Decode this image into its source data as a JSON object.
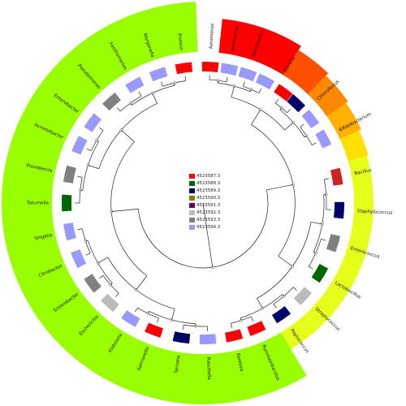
{
  "taxa": [
    "Aeromonas",
    "Aerococcus",
    "Paenibacillus",
    "Borrelia",
    "Chloroflexus",
    "Bifidobacterium",
    "Bacillus",
    "Staphylococcus",
    "Enterococcus",
    "Lactobacillus",
    "Streptococcus",
    "Peptococcus",
    "Rummeliibacillus",
    "Pantoea",
    "Raoultella",
    "Serratia",
    "Salmonella",
    "Klebsiella",
    "Escherichia",
    "Enterobacter",
    "Citrobacter",
    "Shigella",
    "Tatumella",
    "Providencia",
    "Acinetobacter",
    "Enterobacter",
    "Pseudomonas",
    "Xanthomonas",
    "Morganella",
    "Proteus"
  ],
  "labels": [
    {
      "text": "Aeromonas",
      "angle": 3,
      "cls": "dark"
    },
    {
      "text": "Aerococcus",
      "angle": 11,
      "cls": "dark"
    },
    {
      "text": "Paenibacillus",
      "angle": 19,
      "cls": "dark"
    },
    {
      "text": "Borrelia",
      "angle": 32,
      "cls": "dark"
    },
    {
      "text": "Chloroflexus",
      "angle": 48,
      "cls": "dark"
    },
    {
      "text": "Bifidobacterium",
      "angle": 62,
      "cls": "dark"
    },
    {
      "text": "Bacillus",
      "angle": 79,
      "cls": "dark"
    },
    {
      "text": "Staphylococcus",
      "angle": 93,
      "cls": "dark"
    },
    {
      "text": "Enterococcus",
      "angle": 107,
      "cls": "dark"
    },
    {
      "text": "Lactobacillus",
      "angle": 121,
      "cls": "dark"
    },
    {
      "text": "Streptococcus",
      "angle": 133,
      "cls": "dark"
    },
    {
      "text": "Peptococcus",
      "angle": 145,
      "cls": "dark"
    },
    {
      "text": "Rummeliibacillus",
      "angle": 157,
      "cls": "dark"
    },
    {
      "text": "Pantoea",
      "angle": 167,
      "cls": "dark"
    },
    {
      "text": "Raoultella",
      "angle": 178,
      "cls": "dark"
    },
    {
      "text": "Serratia",
      "angle": 189,
      "cls": "dark"
    },
    {
      "text": "Salmonella",
      "angle": 201,
      "cls": "dark"
    },
    {
      "text": "Klebsiella",
      "angle": 212,
      "cls": "dark"
    },
    {
      "text": "Escherichia",
      "angle": 223,
      "cls": "dark"
    },
    {
      "text": "Enterobacter",
      "angle": 234,
      "cls": "dark"
    },
    {
      "text": "Citrobacter",
      "angle": 246,
      "cls": "dark"
    },
    {
      "text": "Shigella",
      "angle": 258,
      "cls": "dark"
    },
    {
      "text": "Tatumella",
      "angle": 270,
      "cls": "dark"
    },
    {
      "text": "Providencia",
      "angle": 282,
      "cls": "dark"
    },
    {
      "text": "Acinetobacter",
      "angle": 295,
      "cls": "dark"
    },
    {
      "text": "Enterobacter",
      "angle": 306,
      "cls": "dark"
    },
    {
      "text": "Pseudomonas",
      "angle": 318,
      "cls": "dark"
    },
    {
      "text": "Xanthomonas",
      "angle": 330,
      "cls": "dark"
    },
    {
      "text": "Morganella",
      "angle": 341,
      "cls": "dark"
    },
    {
      "text": "Proteus",
      "angle": 352,
      "cls": "dark"
    }
  ],
  "outer_sectors": [
    {
      "name": "sector-red",
      "color": "#ff0000",
      "start": 6,
      "end": 32,
      "r": 228
    },
    {
      "name": "sector-orange-dark",
      "color": "#ff5000",
      "start": 32,
      "end": 44,
      "r": 222
    },
    {
      "name": "sector-orange",
      "color": "#ff8800",
      "start": 44,
      "end": 55,
      "r": 218
    },
    {
      "name": "sector-amber",
      "color": "#ffb000",
      "start": 55,
      "end": 65,
      "r": 215
    },
    {
      "name": "sector-yellow",
      "color": "#ffe000",
      "start": 65,
      "end": 74,
      "r": 212
    },
    {
      "name": "sector-yellow-green",
      "color": "#e6ff1a",
      "start": 74,
      "end": 149,
      "r": 210
    },
    {
      "name": "sector-green",
      "color": "#99ff00",
      "start": 149,
      "end": 358,
      "r": 248
    }
  ],
  "ring_blocks": [
    {
      "angle": 3,
      "color": "#ff0000"
    },
    {
      "angle": 11,
      "color": "#9999ff"
    },
    {
      "angle": 19,
      "color": "#9999ff"
    },
    {
      "angle": 27,
      "color": "#9999ff"
    },
    {
      "angle": 36,
      "color": "#ff0000"
    },
    {
      "angle": 43,
      "color": "#000066"
    },
    {
      "angle": 52,
      "color": "#9999ff"
    },
    {
      "angle": 62,
      "color": "#9999ff"
    },
    {
      "angle": 79,
      "color": "#cc2222"
    },
    {
      "angle": 93,
      "color": "#000066"
    },
    {
      "angle": 107,
      "color": "#808080"
    },
    {
      "angle": 121,
      "color": "#006600"
    },
    {
      "angle": 133,
      "color": "#bbbbbb"
    },
    {
      "angle": 145,
      "color": "#000066"
    },
    {
      "angle": 157,
      "color": "#ff0000"
    },
    {
      "angle": 167,
      "color": "#ff0000"
    },
    {
      "angle": 178,
      "color": "#9999ff"
    },
    {
      "angle": 189,
      "color": "#000066"
    },
    {
      "angle": 201,
      "color": "#ff0000"
    },
    {
      "angle": 212,
      "color": "#9999ff"
    },
    {
      "angle": 223,
      "color": "#bbbbbb"
    },
    {
      "angle": 234,
      "color": "#808080"
    },
    {
      "angle": 246,
      "color": "#9999ff"
    },
    {
      "angle": 258,
      "color": "#9999ff"
    },
    {
      "angle": 270,
      "color": "#006600"
    },
    {
      "angle": 282,
      "color": "#808080"
    },
    {
      "angle": 295,
      "color": "#9999ff"
    },
    {
      "angle": 306,
      "color": "#9999ff"
    },
    {
      "angle": 318,
      "color": "#808080"
    },
    {
      "angle": 330,
      "color": "#9999ff"
    },
    {
      "angle": 341,
      "color": "#9999ff"
    },
    {
      "angle": 352,
      "color": "#ff0000"
    }
  ],
  "legend": [
    {
      "label": "4523587.3",
      "color": "#ff0000"
    },
    {
      "label": "4523588.3",
      "color": "#006600"
    },
    {
      "label": "4523589.3",
      "color": "#000066"
    },
    {
      "label": "4523590.3",
      "color": "#808000"
    },
    {
      "label": "4523591.3",
      "color": "#660066"
    },
    {
      "label": "4523592.3",
      "color": "#bbbbbb"
    },
    {
      "label": "4523593.3",
      "color": "#808080"
    },
    {
      "label": "4523594.3",
      "color": "#9999ff"
    }
  ]
}
